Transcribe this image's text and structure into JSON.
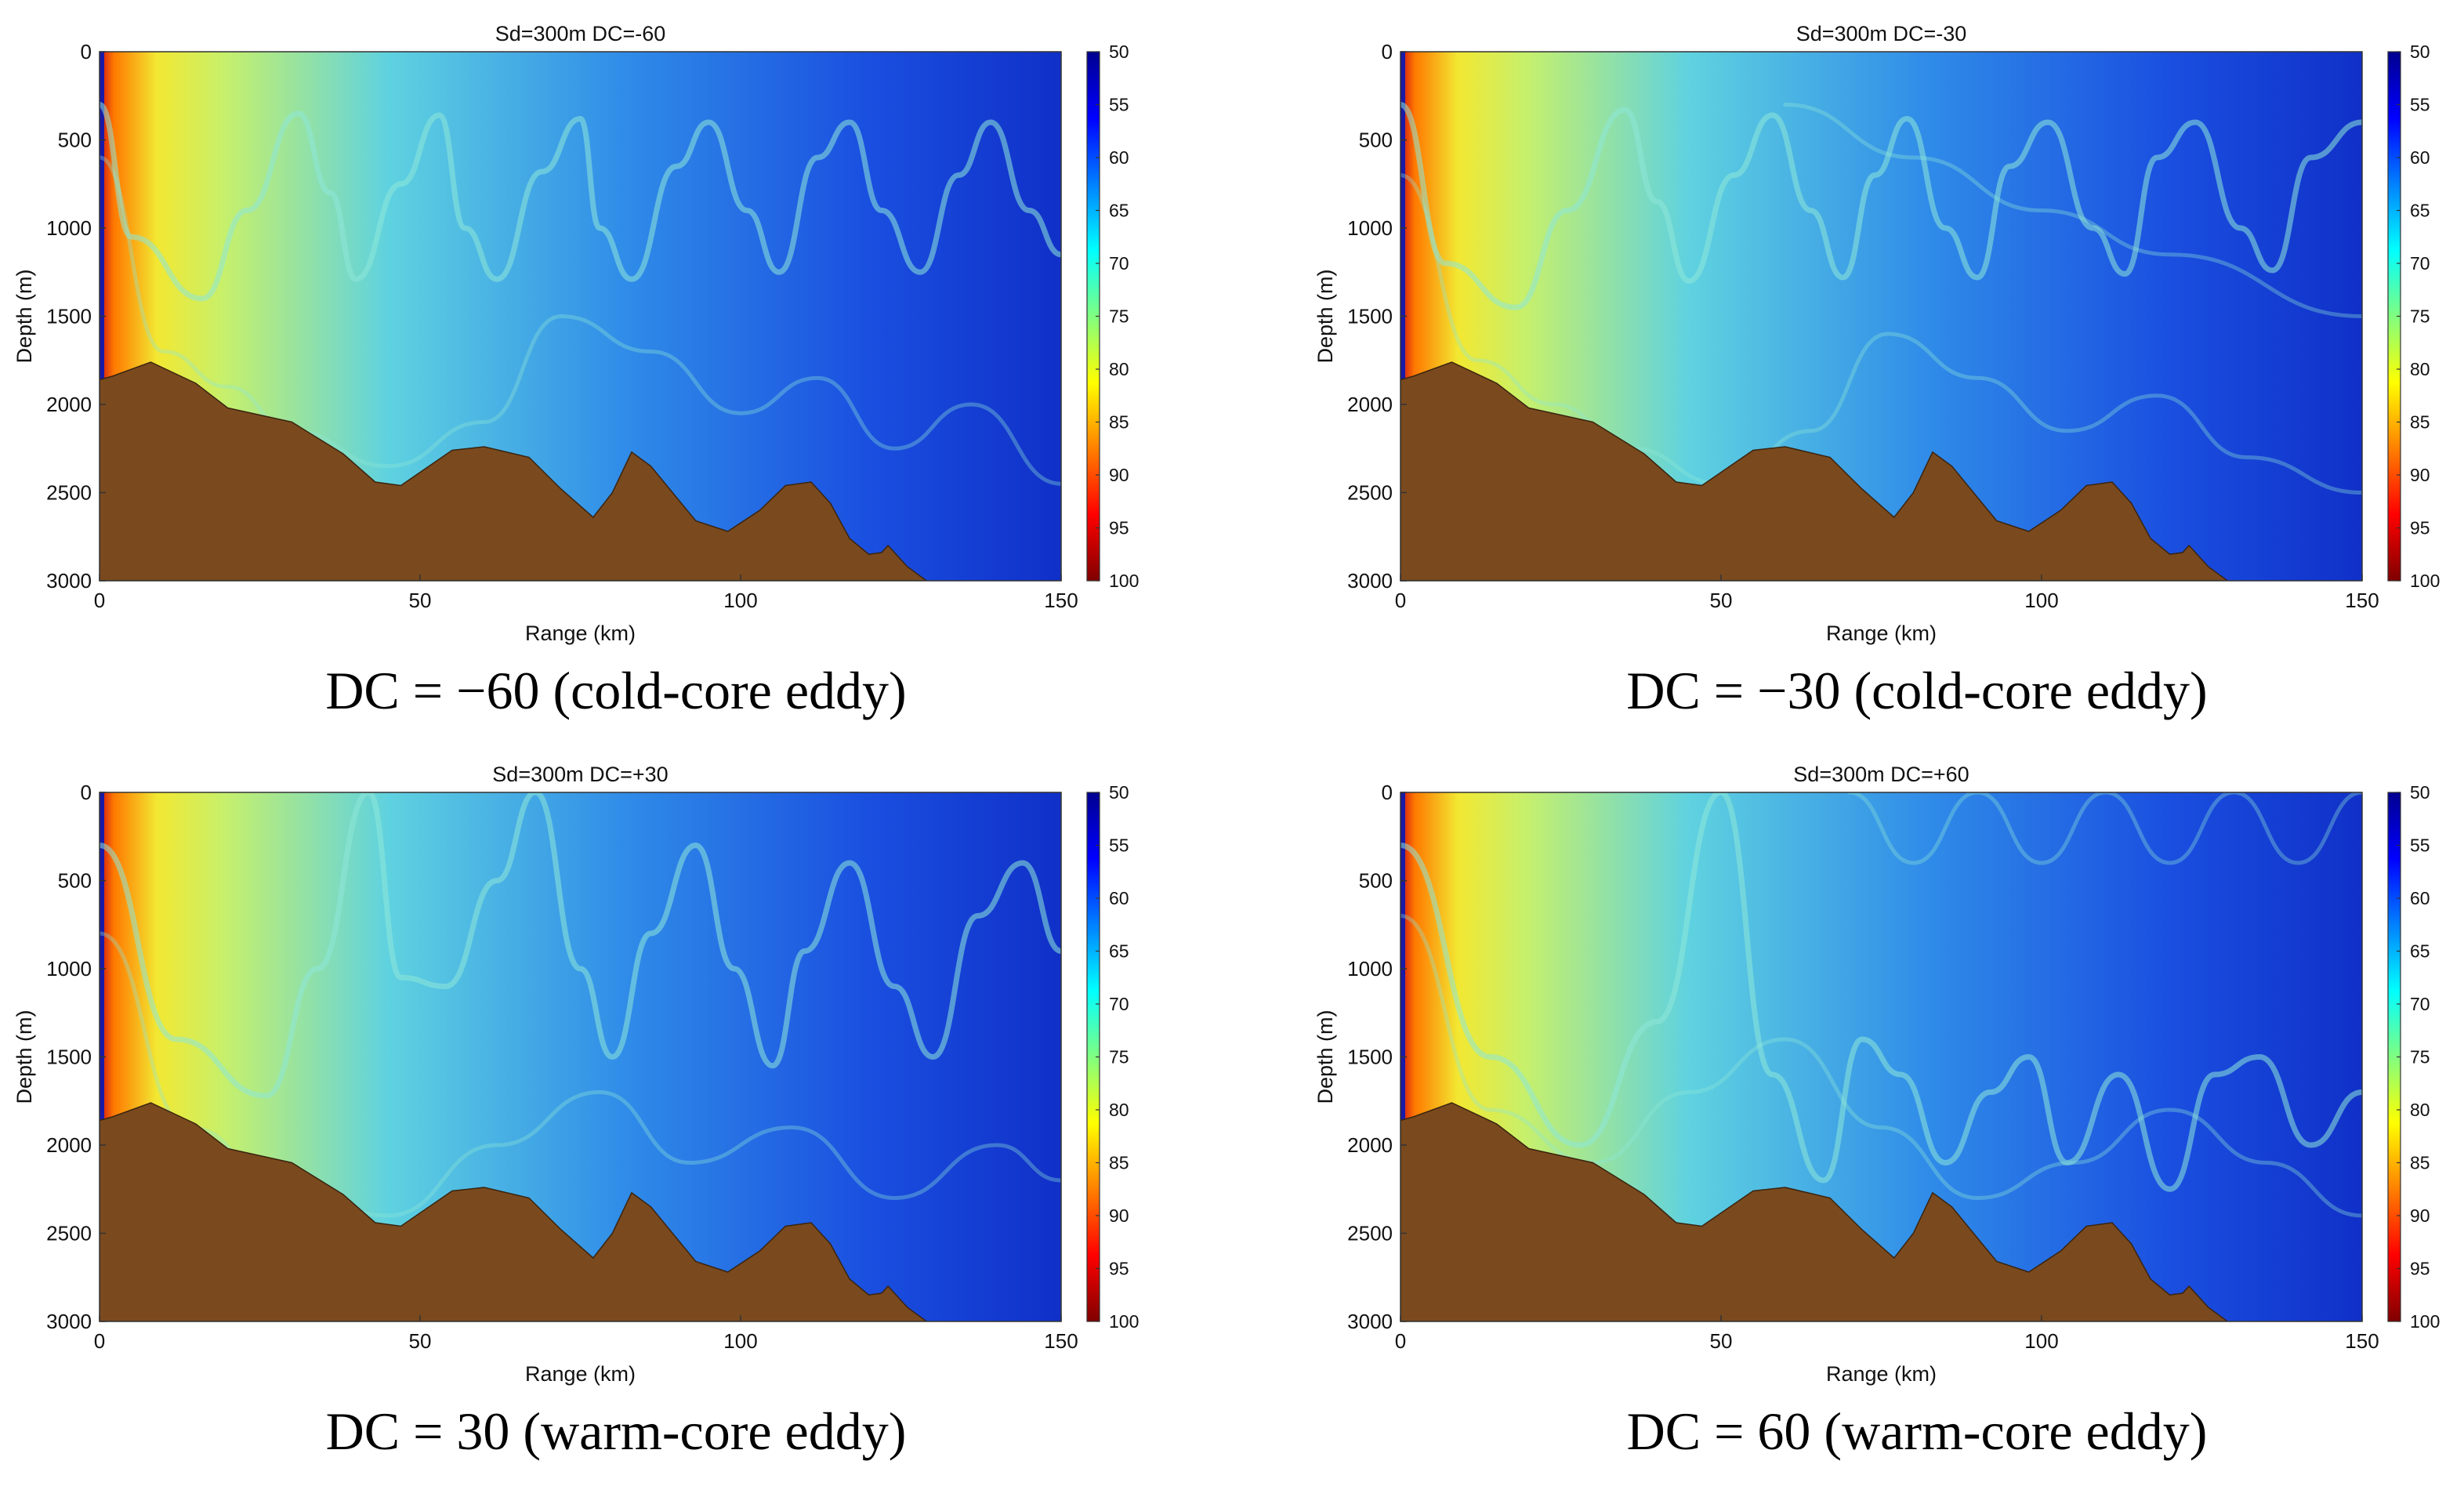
{
  "figure": {
    "captions": [
      "DC = −60 (cold-core eddy)",
      "DC = −30 (cold-core eddy)",
      "DC = 30 (warm-core eddy)",
      "DC = 60 (warm-core eddy)"
    ]
  },
  "colors": {
    "seafloor": "#7a4a1e",
    "colormap": [
      "#7f0000",
      "#ff0000",
      "#ff8000",
      "#ffff00",
      "#80ff80",
      "#00ffff",
      "#0080ff",
      "#0000ff",
      "#00008f"
    ]
  },
  "chart_data": [
    {
      "type": "heatmap",
      "title": "Sd=300m   DC=-60",
      "caption": "DC = −60 (cold-core eddy)",
      "xlabel": "Range (km)",
      "ylabel": "Depth (m)",
      "xlim": [
        0,
        150
      ],
      "ylim": [
        0,
        3000
      ],
      "xticks": [
        0,
        50,
        100,
        150
      ],
      "yticks": [
        0,
        500,
        1000,
        1500,
        2000,
        2500,
        3000
      ],
      "colorbar": {
        "min": 50,
        "max": 100,
        "ticks": [
          50,
          55,
          60,
          65,
          70,
          75,
          80,
          85,
          90,
          95,
          100
        ]
      },
      "bathymetry": {
        "range_km": [
          0,
          2,
          8,
          15,
          20,
          30,
          38,
          43,
          47,
          55,
          60,
          67,
          72,
          77,
          80,
          83,
          86,
          93,
          98,
          103,
          107,
          111,
          114,
          117,
          120,
          122,
          123,
          126,
          129
        ],
        "depth_m": [
          1860,
          1840,
          1760,
          1880,
          2020,
          2100,
          2280,
          2440,
          2460,
          2260,
          2240,
          2300,
          2480,
          2640,
          2500,
          2270,
          2350,
          2660,
          2720,
          2600,
          2460,
          2440,
          2560,
          2760,
          2850,
          2840,
          2800,
          2920,
          3000
        ]
      },
      "ray_arcs": [
        {
          "range_km": [
            0,
            5,
            16,
            23,
            31,
            36,
            40,
            47,
            53,
            57,
            62,
            69,
            75,
            78,
            83,
            90,
            95,
            101,
            106,
            112,
            117,
            122,
            128,
            134,
            139,
            145,
            150
          ],
          "depth_m": [
            300,
            1050,
            1400,
            900,
            350,
            800,
            1290,
            750,
            360,
            1000,
            1290,
            680,
            380,
            1000,
            1290,
            650,
            400,
            900,
            1250,
            600,
            400,
            900,
            1250,
            700,
            400,
            900,
            1150
          ]
        },
        {
          "range_km": [
            0,
            10,
            20,
            30,
            45,
            60,
            72,
            86,
            100,
            112,
            124,
            136,
            150
          ],
          "depth_m": [
            600,
            1700,
            1900,
            2150,
            2350,
            2100,
            1500,
            1700,
            2050,
            1850,
            2250,
            2000,
            2450
          ]
        }
      ]
    },
    {
      "type": "heatmap",
      "title": "Sd=300m   DC=-30",
      "caption": "DC = −30 (cold-core eddy)",
      "xlabel": "Range (km)",
      "ylabel": "Depth (m)",
      "xlim": [
        0,
        150
      ],
      "ylim": [
        0,
        3000
      ],
      "xticks": [
        0,
        50,
        100,
        150
      ],
      "yticks": [
        0,
        500,
        1000,
        1500,
        2000,
        2500,
        3000
      ],
      "colorbar": {
        "min": 50,
        "max": 100,
        "ticks": [
          50,
          55,
          60,
          65,
          70,
          75,
          80,
          85,
          90,
          95,
          100
        ]
      },
      "bathymetry": {
        "range_km": [
          0,
          2,
          8,
          15,
          20,
          30,
          38,
          43,
          47,
          55,
          60,
          67,
          72,
          77,
          80,
          83,
          86,
          93,
          98,
          103,
          107,
          111,
          114,
          117,
          120,
          122,
          123,
          126,
          129
        ],
        "depth_m": [
          1860,
          1840,
          1760,
          1880,
          2020,
          2100,
          2280,
          2440,
          2460,
          2260,
          2240,
          2300,
          2480,
          2640,
          2500,
          2270,
          2350,
          2660,
          2720,
          2600,
          2460,
          2440,
          2560,
          2760,
          2850,
          2840,
          2800,
          2920,
          3000
        ]
      },
      "ray_arcs": [
        {
          "range_km": [
            0,
            7,
            18,
            26,
            35,
            40,
            45,
            52,
            58,
            64,
            69,
            74,
            79,
            85,
            90,
            95,
            101,
            108,
            113,
            118,
            124,
            131,
            136,
            142,
            150
          ],
          "depth_m": [
            300,
            1200,
            1450,
            900,
            330,
            850,
            1300,
            700,
            360,
            900,
            1280,
            700,
            380,
            1000,
            1280,
            650,
            400,
            1000,
            1260,
            600,
            400,
            1000,
            1240,
            600,
            400
          ]
        },
        {
          "range_km": [
            60,
            80,
            100,
            120,
            150
          ],
          "depth_m": [
            300,
            600,
            900,
            1150,
            1500
          ]
        },
        {
          "range_km": [
            0,
            12,
            24,
            36,
            50,
            64,
            76,
            90,
            104,
            118,
            132,
            150
          ],
          "depth_m": [
            700,
            1750,
            2000,
            2250,
            2450,
            2150,
            1600,
            1850,
            2150,
            1950,
            2300,
            2500
          ]
        }
      ]
    },
    {
      "type": "heatmap",
      "title": "Sd=300m   DC=+30",
      "caption": "DC = 30 (warm-core eddy)",
      "xlabel": "Range (km)",
      "ylabel": "Depth (m)",
      "xlim": [
        0,
        150
      ],
      "ylim": [
        0,
        3000
      ],
      "xticks": [
        0,
        50,
        100,
        150
      ],
      "yticks": [
        0,
        500,
        1000,
        1500,
        2000,
        2500,
        3000
      ],
      "colorbar": {
        "min": 50,
        "max": 100,
        "ticks": [
          50,
          55,
          60,
          65,
          70,
          75,
          80,
          85,
          90,
          95,
          100
        ]
      },
      "bathymetry": {
        "range_km": [
          0,
          2,
          8,
          15,
          20,
          30,
          38,
          43,
          47,
          55,
          60,
          67,
          72,
          77,
          80,
          83,
          86,
          93,
          98,
          103,
          107,
          111,
          114,
          117,
          120,
          122,
          123,
          126,
          129
        ],
        "depth_m": [
          1860,
          1840,
          1760,
          1880,
          2020,
          2100,
          2280,
          2440,
          2460,
          2260,
          2240,
          2300,
          2480,
          2640,
          2500,
          2270,
          2350,
          2660,
          2720,
          2600,
          2460,
          2440,
          2560,
          2760,
          2850,
          2840,
          2800,
          2920,
          3000
        ]
      },
      "ray_arcs": [
        {
          "range_km": [
            0,
            12,
            26,
            34,
            42,
            47,
            54,
            62,
            68,
            75,
            80,
            86,
            93,
            99,
            105,
            110,
            117,
            124,
            130,
            137,
            144,
            150
          ],
          "depth_m": [
            300,
            1400,
            1720,
            1000,
            0,
            1050,
            1100,
            500,
            0,
            1000,
            1500,
            800,
            300,
            1000,
            1550,
            900,
            400,
            1100,
            1500,
            700,
            400,
            900
          ]
        },
        {
          "range_km": [
            0,
            14,
            28,
            45,
            62,
            78,
            92,
            108,
            124,
            140,
            150
          ],
          "depth_m": [
            800,
            1900,
            2200,
            2400,
            2000,
            1700,
            2100,
            1900,
            2300,
            2000,
            2200
          ]
        }
      ]
    },
    {
      "type": "heatmap",
      "title": "Sd=300m   DC=+60",
      "caption": "DC = 60 (warm-core eddy)",
      "xlabel": "Range (km)",
      "ylabel": "Depth (m)",
      "xlim": [
        0,
        150
      ],
      "ylim": [
        0,
        3000
      ],
      "xticks": [
        0,
        50,
        100,
        150
      ],
      "yticks": [
        0,
        500,
        1000,
        1500,
        2000,
        2500,
        3000
      ],
      "colorbar": {
        "min": 50,
        "max": 100,
        "ticks": [
          50,
          55,
          60,
          65,
          70,
          75,
          80,
          85,
          90,
          95,
          100
        ]
      },
      "bathymetry": {
        "range_km": [
          0,
          2,
          8,
          15,
          20,
          30,
          38,
          43,
          47,
          55,
          60,
          67,
          72,
          77,
          80,
          83,
          86,
          93,
          98,
          103,
          107,
          111,
          114,
          117,
          120,
          122,
          123,
          126,
          129
        ],
        "depth_m": [
          1860,
          1840,
          1760,
          1880,
          2020,
          2100,
          2280,
          2440,
          2460,
          2260,
          2240,
          2300,
          2480,
          2640,
          2500,
          2270,
          2350,
          2660,
          2720,
          2600,
          2460,
          2440,
          2560,
          2760,
          2850,
          2840,
          2800,
          2920,
          3000
        ]
      },
      "ray_arcs": [
        {
          "range_km": [
            0,
            14,
            28,
            40,
            50,
            58,
            66,
            72,
            78,
            85,
            92,
            98,
            104,
            112,
            120,
            127,
            134,
            142,
            150
          ],
          "depth_m": [
            300,
            1500,
            2000,
            1300,
            0,
            1600,
            2200,
            1400,
            1600,
            2100,
            1700,
            1500,
            2100,
            1600,
            2250,
            1600,
            1500,
            2000,
            1700
          ]
        },
        {
          "range_km": [
            70,
            80,
            90,
            100,
            110,
            120,
            130,
            140,
            150
          ],
          "depth_m": [
            0,
            400,
            0,
            400,
            0,
            400,
            0,
            400,
            0
          ]
        },
        {
          "range_km": [
            0,
            14,
            30,
            45,
            60,
            75,
            90,
            105,
            120,
            135,
            150
          ],
          "depth_m": [
            700,
            1800,
            2100,
            1700,
            1400,
            1900,
            2300,
            2100,
            1800,
            2100,
            2400
          ]
        }
      ]
    }
  ]
}
